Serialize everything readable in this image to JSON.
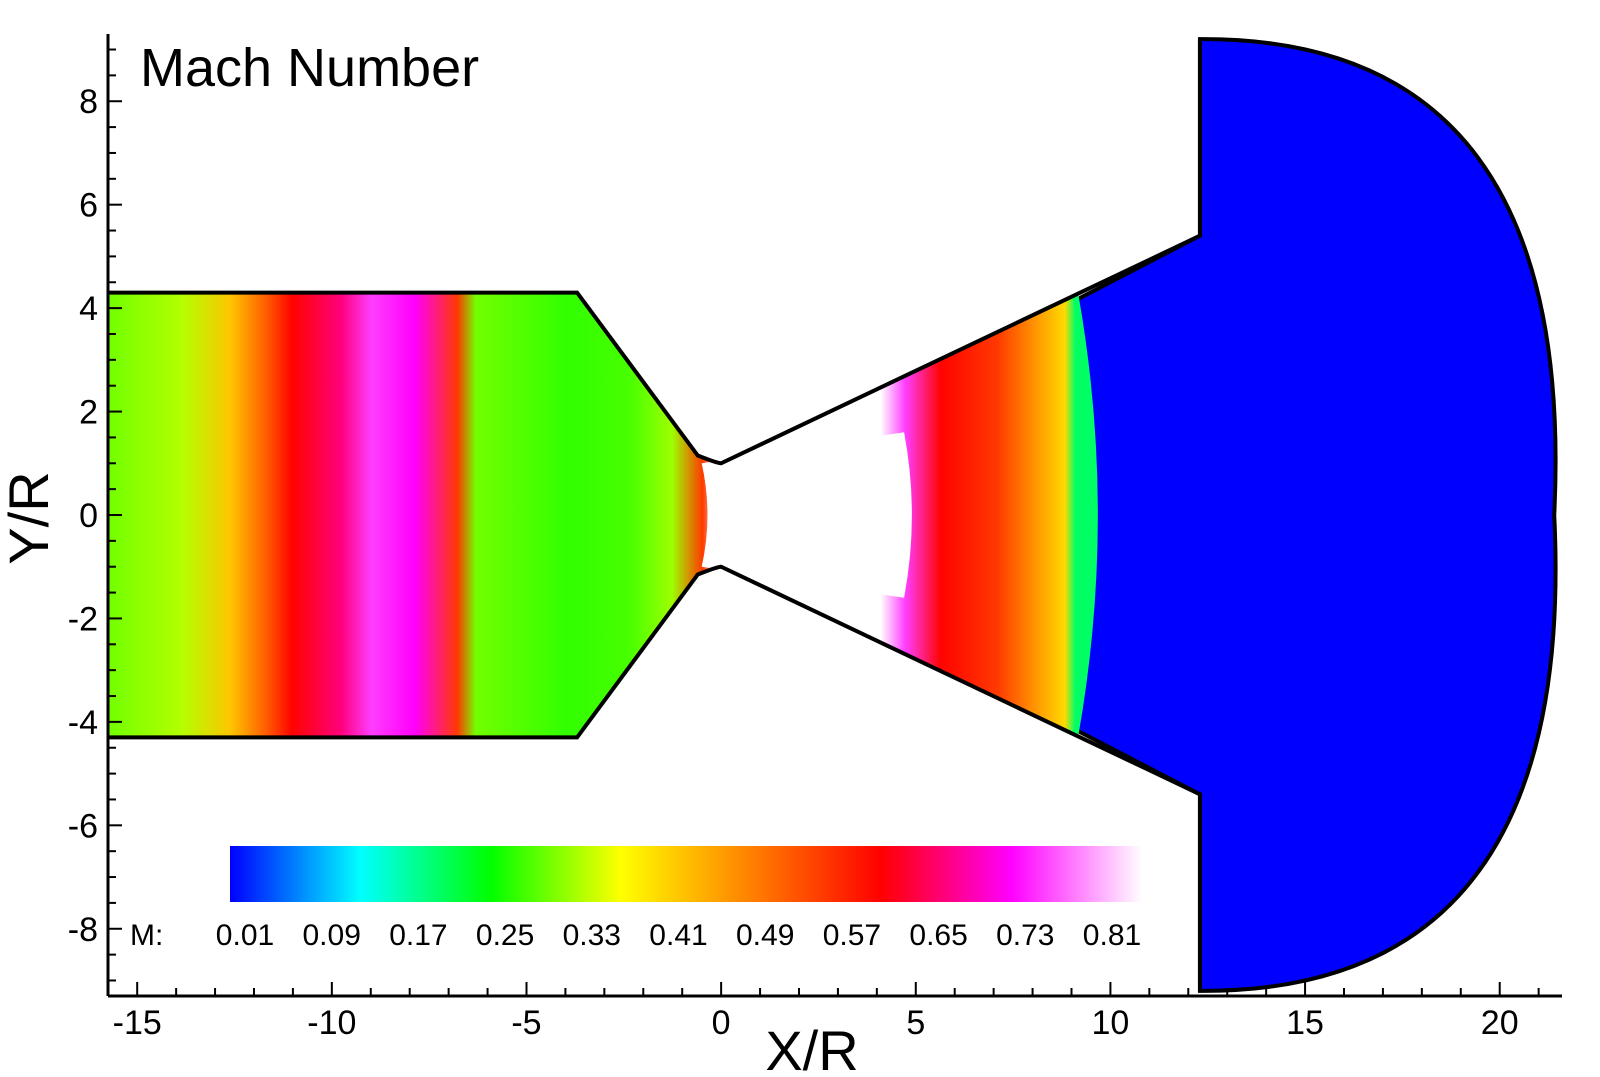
{
  "chart_data": {
    "type": "heatmap",
    "title": "Mach Number",
    "xlabel": "X/R",
    "ylabel": "Y/R",
    "xlim": [
      -15.75,
      21.6
    ],
    "ylim": [
      -9.3,
      9.3
    ],
    "x_ticks": [
      -15,
      -10,
      -5,
      0,
      5,
      10,
      15,
      20
    ],
    "x_tick_labels": [
      "-15",
      "-10",
      "-5",
      "0",
      "5",
      "10",
      "15",
      "20"
    ],
    "y_ticks": [
      8,
      6,
      4,
      2,
      0,
      -2,
      -4,
      -6,
      -8
    ],
    "y_tick_labels": [
      "8",
      "6",
      "4",
      "2",
      "0",
      "-2",
      "-4",
      "-6",
      "-8"
    ],
    "colorbar": {
      "variable_label": "M:",
      "min": 0.01,
      "max": 0.84,
      "levels": [
        "0.01",
        "0.09",
        "0.17",
        "0.25",
        "0.33",
        "0.41",
        "0.49",
        "0.57",
        "0.65",
        "0.73",
        "0.81"
      ],
      "color_stops": [
        "#0000ff",
        "#00ffff",
        "#00ff00",
        "#ffff00",
        "#ff8000",
        "#ff0000",
        "#ff00ff",
        "#ffffff"
      ]
    },
    "geometry": {
      "chamber_radius": 4.3,
      "chamber_end_x": -3.7,
      "throat_x": 0,
      "throat_radius": 1.0,
      "nozzle_exit_x": 12.3,
      "nozzle_exit_radius": 5.4,
      "farfield_radius": 9.2,
      "farfield_right_x": 21.4
    },
    "regions": {
      "shock_front_x": 9.1,
      "chamber_peak_x": -8.5,
      "core_mach_max": 0.84,
      "external_mach": 0.01
    }
  }
}
